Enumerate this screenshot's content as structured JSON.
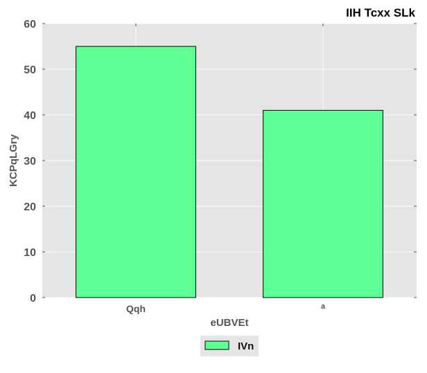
{
  "chart_data": {
    "type": "bar",
    "title": "IIH Tcxx SLk",
    "xlabel": "eUBVEt",
    "ylabel": "KCPqLGry",
    "categories": [
      "Qqh",
      "a"
    ],
    "series": [
      {
        "name": "IVn",
        "values": [
          55,
          41
        ]
      }
    ],
    "ylim": [
      0,
      60
    ],
    "yticks": [
      0,
      10,
      20,
      30,
      40,
      50,
      60
    ],
    "grid": true,
    "legend_position": "bottom-center",
    "colors": {
      "bar_fill": "#5eff95",
      "bar_edge": "#000000",
      "plot_background": "#e5e5e5",
      "grid": "#ffffff"
    }
  }
}
